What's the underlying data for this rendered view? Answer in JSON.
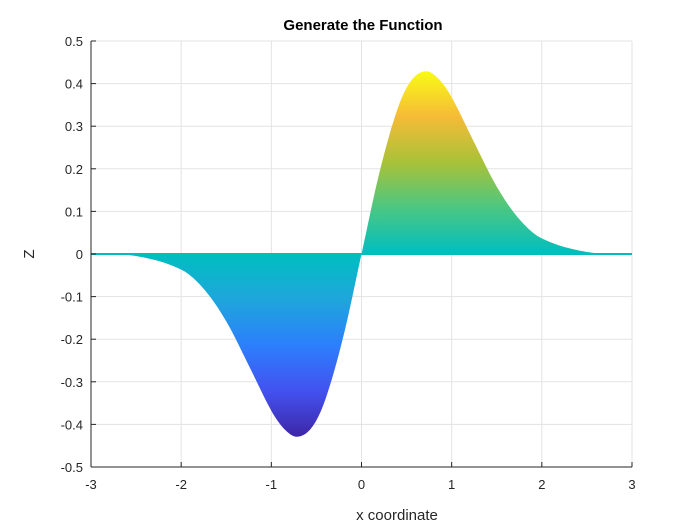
{
  "chart_data": {
    "type": "area",
    "title": "Generate the Function",
    "xlabel": "x coordinate",
    "ylabel": "Z",
    "xlim": [
      -3,
      3
    ],
    "ylim": [
      -0.5,
      0.5
    ],
    "xticks": [
      -3,
      -2,
      -1,
      0,
      1,
      2,
      3
    ],
    "yticks": [
      -0.5,
      -0.4,
      -0.3,
      -0.2,
      -0.1,
      0,
      0.1,
      0.2,
      0.3,
      0.4,
      0.5
    ],
    "x_tick_labels": [
      "-3",
      "-2",
      "-1",
      "0",
      "1",
      "2",
      "3"
    ],
    "y_tick_labels": [
      "-0.5",
      "-0.4",
      "-0.3",
      "-0.2",
      "-0.1",
      "0",
      "0.1",
      "0.2",
      "0.3",
      "0.4",
      "0.5"
    ],
    "grid": true,
    "x": [
      -3,
      -2.5,
      -2,
      -1.75,
      -1.5,
      -1.25,
      -1,
      -0.85,
      -0.71,
      -0.55,
      -0.4,
      -0.2,
      0,
      0.2,
      0.4,
      0.55,
      0.71,
      0.85,
      1,
      1.25,
      1.5,
      1.75,
      2,
      2.5,
      3
    ],
    "series": [
      {
        "values": [
          -0.0004,
          -0.0048,
          -0.0366,
          -0.0818,
          -0.1581,
          -0.2617,
          -0.3679,
          -0.4123,
          -0.4289,
          -0.4068,
          -0.3409,
          -0.1922,
          0,
          0.1922,
          0.3409,
          0.4068,
          0.4289,
          0.4123,
          0.3679,
          0.2617,
          0.1581,
          0.0818,
          0.0366,
          0.0048,
          0.0004
        ]
      }
    ],
    "colormap": [
      "#3e26a8",
      "#4352f0",
      "#2c7ffc",
      "#1ea6dc",
      "#00bec0",
      "#4ac783",
      "#a8c238",
      "#f5bb37",
      "#f9fb15"
    ]
  }
}
